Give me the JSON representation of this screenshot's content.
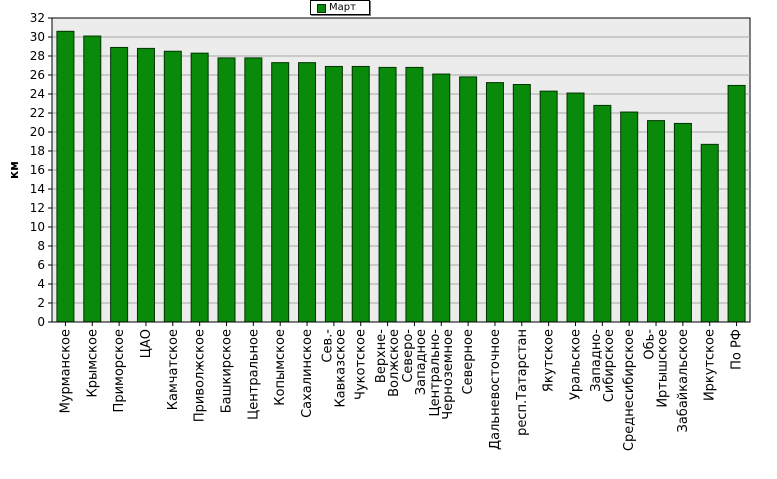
{
  "chart_data": {
    "type": "bar",
    "ylabel": "км",
    "ylim": [
      0,
      32
    ],
    "yticks": [
      0,
      2,
      4,
      6,
      8,
      10,
      12,
      14,
      16,
      18,
      20,
      22,
      24,
      26,
      28,
      30,
      32
    ],
    "grid": true,
    "legend": {
      "position": "top-center",
      "entries": [
        "Март"
      ]
    },
    "bar_color": "#0a8a0a",
    "bar_edge_color": "#003300",
    "plot_background": "#ececec",
    "series": [
      {
        "name": "Март",
        "values": [
          30.6,
          30.1,
          28.9,
          28.8,
          28.5,
          28.3,
          27.8,
          27.8,
          27.3,
          27.3,
          26.9,
          26.9,
          26.8,
          26.8,
          26.1,
          25.8,
          25.2,
          25.0,
          24.3,
          24.1,
          22.8,
          22.1,
          21.2,
          20.9,
          18.7,
          24.9
        ]
      }
    ],
    "categories": [
      "Мурманское",
      "Крымское",
      "Приморское",
      "ЦАО",
      "Камчатское",
      "Приволжское",
      "Башкирское",
      "Центральное",
      "Копымское",
      "Сахалинское",
      "Сев.-Кавказское",
      "Чукотское",
      "Верхне-Волжское",
      "Северо-Западное",
      "Центрально-Черноземное",
      "Северное",
      "Дальневосточное",
      "респ.Татарстан",
      "Якутское",
      "Уральское",
      "Западно-Сибирское",
      "Среднесибирское",
      "Обь-Иртышское",
      "Забайкальское",
      "Иркутское",
      "По РФ"
    ],
    "category_lines": [
      [
        "Мурманское"
      ],
      [
        "Крымское"
      ],
      [
        "Приморское"
      ],
      [
        "ЦАО"
      ],
      [
        "Камчатское"
      ],
      [
        "Приволжское"
      ],
      [
        "Башкирское"
      ],
      [
        "Центральное"
      ],
      [
        "Копымское"
      ],
      [
        "Сахалинское"
      ],
      [
        "Сев.-",
        "Кавказское"
      ],
      [
        "Чукотское"
      ],
      [
        "Верхне-",
        "Волжское"
      ],
      [
        "Северо-",
        "Западное"
      ],
      [
        "Центрально-",
        "Черноземное"
      ],
      [
        "Северное"
      ],
      [
        "Дальневосточное"
      ],
      [
        "респ.Татарстан"
      ],
      [
        "Якутское"
      ],
      [
        "Уральское"
      ],
      [
        "Западно-",
        "Сибирское"
      ],
      [
        "Среднесибирское"
      ],
      [
        "Обь-",
        "Иртышское"
      ],
      [
        "Забайкальское"
      ],
      [
        "Иркутское"
      ],
      [
        "По РФ"
      ]
    ]
  }
}
